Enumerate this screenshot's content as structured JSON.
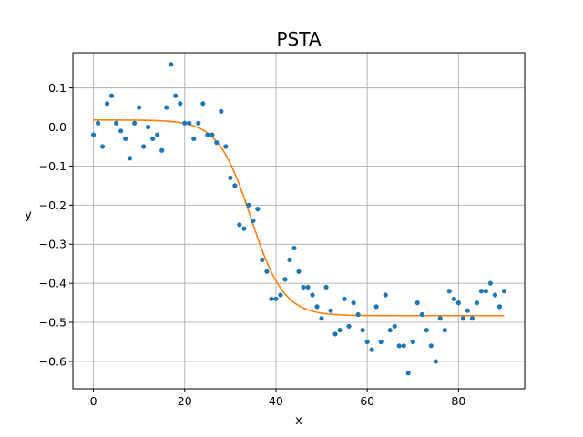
{
  "chart_data": {
    "type": "scatter",
    "title": "PSTA",
    "xlabel": "x",
    "ylabel": "y",
    "xlim": [
      -4.5,
      94.5
    ],
    "ylim": [
      -0.67,
      0.19
    ],
    "xticks": [
      0,
      20,
      40,
      60,
      80
    ],
    "yticks": [
      -0.6,
      -0.5,
      -0.4,
      -0.3,
      -0.2,
      -0.1,
      0.0,
      0.1
    ],
    "ytick_labels": [
      "−0.6",
      "−0.5",
      "−0.4",
      "−0.3",
      "−0.2",
      "−0.1",
      "0.0",
      "0.1"
    ],
    "xtick_labels": [
      "0",
      "20",
      "40",
      "60",
      "80"
    ],
    "grid": true,
    "series": [
      {
        "kind": "points",
        "color": "#1f77b4",
        "x": [
          0,
          1,
          2,
          3,
          4,
          5,
          6,
          7,
          8,
          9,
          10,
          11,
          12,
          13,
          14,
          15,
          16,
          17,
          18,
          19,
          20,
          21,
          22,
          23,
          24,
          25,
          26,
          27,
          28,
          29,
          30,
          31,
          32,
          33,
          34,
          35,
          36,
          37,
          38,
          39,
          40,
          41,
          42,
          43,
          44,
          45,
          46,
          47,
          48,
          49,
          50,
          51,
          52,
          53,
          54,
          55,
          56,
          57,
          58,
          59,
          60,
          61,
          62,
          63,
          64,
          65,
          66,
          67,
          68,
          69,
          70,
          71,
          72,
          73,
          74,
          75,
          76,
          77,
          78,
          79,
          80,
          81,
          82,
          83,
          84,
          85,
          86,
          87,
          88,
          89,
          90
        ],
        "y": [
          -0.02,
          0.01,
          -0.05,
          0.06,
          0.08,
          0.01,
          -0.01,
          -0.03,
          -0.08,
          0.01,
          0.05,
          -0.05,
          0.0,
          -0.03,
          -0.02,
          -0.06,
          0.05,
          0.16,
          0.08,
          0.06,
          0.01,
          0.01,
          -0.03,
          0.01,
          0.06,
          -0.02,
          -0.02,
          -0.04,
          0.04,
          -0.05,
          -0.13,
          -0.15,
          -0.25,
          -0.26,
          -0.2,
          -0.24,
          -0.21,
          -0.34,
          -0.37,
          -0.44,
          -0.44,
          -0.43,
          -0.39,
          -0.34,
          -0.31,
          -0.37,
          -0.41,
          -0.41,
          -0.43,
          -0.46,
          -0.49,
          -0.41,
          -0.47,
          -0.53,
          -0.52,
          -0.44,
          -0.51,
          -0.45,
          -0.48,
          -0.52,
          -0.55,
          -0.57,
          -0.46,
          -0.55,
          -0.43,
          -0.52,
          -0.51,
          -0.56,
          -0.56,
          -0.63,
          -0.55,
          -0.45,
          -0.48,
          -0.52,
          -0.56,
          -0.6,
          -0.49,
          -0.52,
          -0.42,
          -0.44,
          -0.45,
          -0.49,
          -0.47,
          -0.49,
          -0.45,
          -0.42,
          -0.42,
          -0.4,
          -0.43,
          -0.46,
          -0.42
        ]
      },
      {
        "kind": "line",
        "color": "#ff7f0e",
        "fit": {
          "type": "sigmoid",
          "top": 0.018,
          "bottom": -0.483,
          "center": 34.5,
          "width": 3.6,
          "x_start": 0,
          "x_end": 90
        }
      }
    ]
  }
}
